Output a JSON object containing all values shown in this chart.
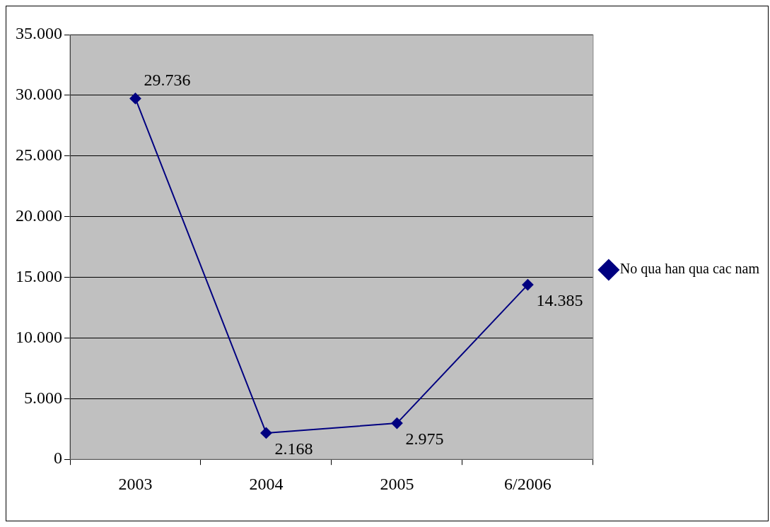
{
  "chart_data": {
    "type": "line",
    "categories": [
      "2003",
      "2004",
      "2005",
      "6/2006"
    ],
    "series": [
      {
        "name": "No qua han qua cac nam",
        "color": "#000080",
        "values": [
          29736,
          2168,
          2975,
          14385
        ]
      }
    ],
    "ylim": [
      0,
      35000
    ],
    "yticks": [
      {
        "value": 0,
        "label": "0"
      },
      {
        "value": 5000,
        "label": "5.000"
      },
      {
        "value": 10000,
        "label": "10.000"
      },
      {
        "value": 15000,
        "label": "15.000"
      },
      {
        "value": 20000,
        "label": "20.000"
      },
      {
        "value": 25000,
        "label": "25.000"
      },
      {
        "value": 30000,
        "label": "30.000"
      },
      {
        "value": 35000,
        "label": "35.000"
      }
    ],
    "value_labels": [
      "29.736",
      "2.168",
      "2.975",
      "14.385"
    ],
    "grid": "y",
    "legend": "right",
    "marker": "diamond",
    "line_style": "solid"
  }
}
